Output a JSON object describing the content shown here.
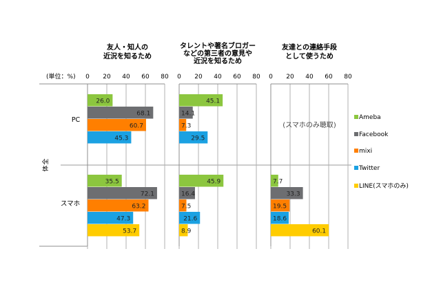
{
  "chart_data": {
    "type": "bar",
    "orientation": "horizontal",
    "unit_label": "(単位：%)",
    "row_group_label": "全体",
    "categories": [
      "PC",
      "スマホ"
    ],
    "x_ticks": [
      "0",
      "20",
      "40",
      "60",
      "80"
    ],
    "xlim": [
      0,
      80
    ],
    "grid": true,
    "legend_position": "right",
    "legend": [
      {
        "name": "Ameba",
        "color": "#8CC63F"
      },
      {
        "name": "Facebook",
        "color": "#6D6E71"
      },
      {
        "name": "mixi",
        "color": "#FF7F00"
      },
      {
        "name": "Twitter",
        "color": "#1BA1E2"
      },
      {
        "name": "LINE(スマホのみ)",
        "color": "#FFCC00"
      }
    ],
    "panels": [
      {
        "title_lines": [
          "友人・知人の",
          "近況を知るため"
        ],
        "groups": [
          {
            "category": "PC",
            "values": {
              "Ameba": 26.0,
              "Facebook": 68.1,
              "mixi": 60.7,
              "Twitter": 45.3
            }
          },
          {
            "category": "スマホ",
            "values": {
              "Ameba": 35.5,
              "Facebook": 72.1,
              "mixi": 63.2,
              "Twitter": 47.3,
              "LINE(スマホのみ)": 53.7
            }
          }
        ]
      },
      {
        "title_lines": [
          "タレントや著名ブロガー",
          "などの第三者の意見や",
          "近況を知るため"
        ],
        "groups": [
          {
            "category": "PC",
            "values": {
              "Ameba": 45.1,
              "Facebook": 14.1,
              "mixi": 7.3,
              "Twitter": 29.5
            }
          },
          {
            "category": "スマホ",
            "values": {
              "Ameba": 45.9,
              "Facebook": 16.4,
              "mixi": 7.5,
              "Twitter": 21.6,
              "LINE(スマホのみ)": 8.9
            }
          }
        ]
      },
      {
        "title_lines": [
          "友達との連絡手段",
          "として使うため"
        ],
        "groups": [
          {
            "category": "PC",
            "note": "(スマホのみ聴取)",
            "values": {}
          },
          {
            "category": "スマホ",
            "values": {
              "Ameba": 7.7,
              "Facebook": 33.3,
              "mixi": 19.5,
              "Twitter": 18.6,
              "LINE(スマホのみ)": 60.1
            }
          }
        ]
      }
    ]
  }
}
